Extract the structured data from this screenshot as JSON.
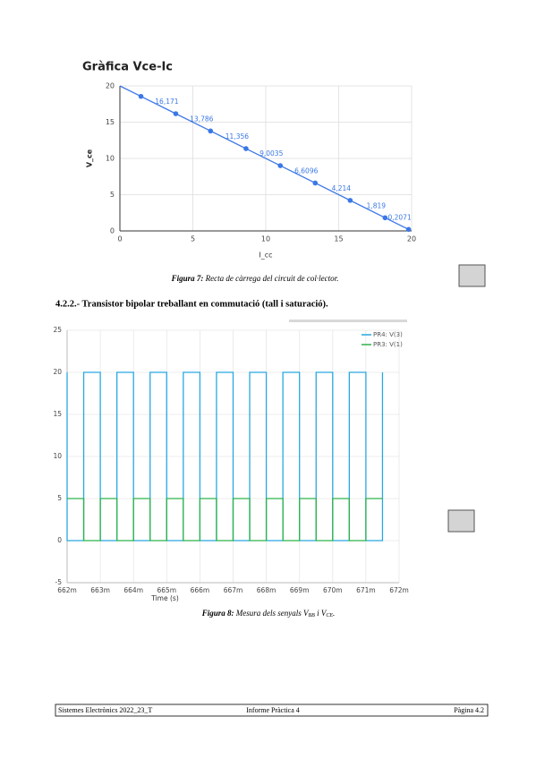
{
  "chart_data": [
    {
      "type": "line",
      "title": "Gràfica Vce-Ic",
      "xlabel": "I_cc",
      "ylabel": "V_ce",
      "color": "#3b78e7",
      "x": [
        0,
        1.444,
        3.829,
        6.214,
        8.644,
        10.9965,
        13.3904,
        15.786,
        18.181,
        19.7929
      ],
      "values": [
        20,
        18.556,
        16.171,
        13.786,
        11.356,
        9.0035,
        6.6096,
        4.214,
        1.819,
        0.2071
      ],
      "value_labels": [
        null,
        null,
        "16,171",
        "13,786",
        "11,356",
        "9,0035",
        "6,6096",
        "4,214",
        "1,819",
        "0,2071"
      ],
      "xlim": [
        0,
        20
      ],
      "xticks": [
        0,
        5,
        10,
        15,
        20
      ],
      "ylim": [
        0,
        20
      ],
      "yticks": [
        0,
        5,
        10,
        15,
        20
      ],
      "grid": true
    },
    {
      "type": "line",
      "xlabel": "Time (s)",
      "x": [
        662,
        662,
        662.5,
        662.5,
        663,
        663,
        663.5,
        663.5,
        664,
        664,
        664.5,
        664.5,
        665,
        665,
        665.5,
        665.5,
        666,
        666,
        666.5,
        666.5,
        667,
        667,
        667.5,
        667.5,
        668,
        668,
        668.5,
        668.5,
        669,
        669,
        669.5,
        669.5,
        670,
        670,
        670.5,
        670.5,
        671,
        671,
        671.5,
        671.5
      ],
      "series": [
        {
          "name": "PR4: V(3)",
          "color": "#29a8e0",
          "values": [
            20,
            0,
            0,
            20,
            20,
            0,
            0,
            20,
            20,
            0,
            0,
            20,
            20,
            0,
            0,
            20,
            20,
            0,
            0,
            20,
            20,
            0,
            0,
            20,
            20,
            0,
            0,
            20,
            20,
            0,
            0,
            20,
            20,
            0,
            0,
            20,
            20,
            0,
            0,
            20
          ]
        },
        {
          "name": "PR3: V(1)",
          "color": "#2db34a",
          "values": [
            5,
            5,
            5,
            0,
            0,
            5,
            5,
            0,
            0,
            5,
            5,
            0,
            0,
            5,
            5,
            0,
            0,
            5,
            5,
            0,
            0,
            5,
            5,
            0,
            0,
            5,
            5,
            0,
            0,
            5,
            5,
            0,
            0,
            5,
            5,
            0,
            0,
            5,
            5,
            5
          ]
        }
      ],
      "xlim": [
        662,
        672
      ],
      "xticks": [
        {
          "value": 662,
          "label": "662m"
        },
        {
          "value": 663,
          "label": "663m"
        },
        {
          "value": 664,
          "label": "664m"
        },
        {
          "value": 665,
          "label": "665m"
        },
        {
          "value": 666,
          "label": "666m"
        },
        {
          "value": 667,
          "label": "667m"
        },
        {
          "value": 668,
          "label": "668m"
        },
        {
          "value": 669,
          "label": "669m"
        },
        {
          "value": 670,
          "label": "670m"
        },
        {
          "value": 671,
          "label": "671m"
        },
        {
          "value": 672,
          "label": "672m"
        }
      ],
      "ylim": [
        -5,
        25
      ],
      "yticks": [
        -5,
        0,
        5,
        10,
        15,
        20,
        25
      ],
      "grid": true,
      "legend": "top-right"
    }
  ],
  "figure_7_caption": {
    "label": "Figura 7:",
    "text": " Recta de càrrega del circuit de col·lector."
  },
  "heading": "4.2.2.- Transistor bipolar treballant en commutació (tall i saturació).",
  "figure_8_caption": {
    "label": "Figura 8:",
    "text_1": " Mesura dels senyals V",
    "sub_1": "BB",
    "text_2": " i V",
    "sub_2": "CE",
    "text_3": "."
  },
  "footer": {
    "left": "Sistemes Electrònics 2022_23_T",
    "center": "Informe Pràctica 4",
    "right": "Pàgina 4.2"
  }
}
